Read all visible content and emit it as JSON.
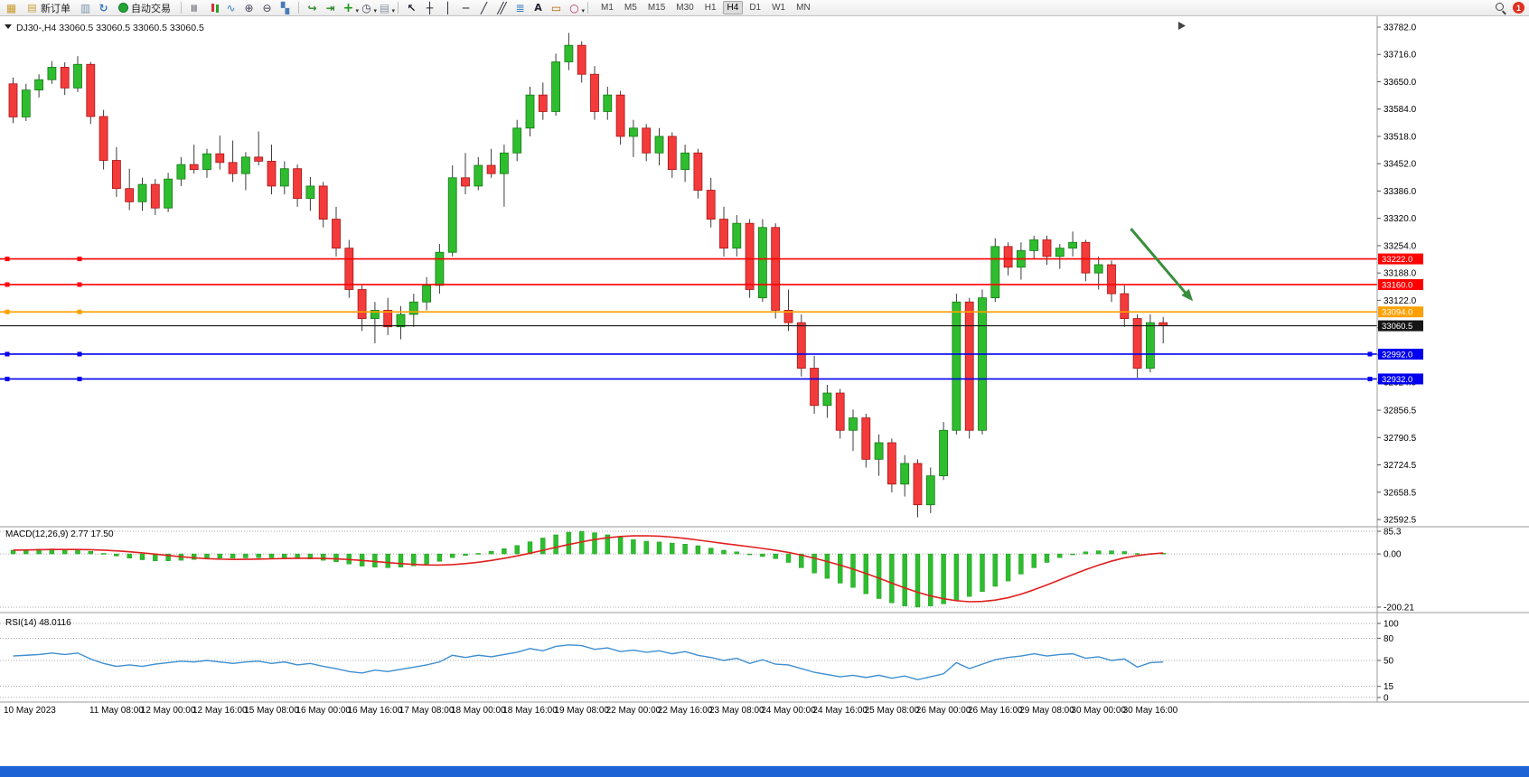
{
  "window": {
    "bottom_bar_color": "#1e63d6"
  },
  "toolbar": {
    "new_order_label": "新订单",
    "autotrading_label": "自动交易",
    "timeframes": [
      "M1",
      "M5",
      "M15",
      "M30",
      "H1",
      "H4",
      "D1",
      "W1",
      "MN"
    ],
    "active_timeframe": "H4",
    "notification_count": "1"
  },
  "chart_data": {
    "type": "candlestick",
    "symbol": "DJ30-",
    "period": "H4",
    "header": "DJ30-,H4  33060.5 33060.5 33060.5 33060.5",
    "ylim": [
      32592.5,
      33782.0
    ],
    "y_axis_labels": [
      "33782.0",
      "33716.0",
      "33650.0",
      "33584.0",
      "33518.0",
      "33452.0",
      "33386.0",
      "33320.0",
      "33254.0",
      "33188.0",
      "33122.0",
      "33056.0",
      "32990.0",
      "32924.0",
      "32856.5",
      "32790.5",
      "32724.5",
      "32658.5",
      "32592.5"
    ],
    "time_labels": [
      [
        "10 May 2023",
        0
      ],
      [
        "11 May 08:00",
        8
      ],
      [
        "12 May 00:00",
        12
      ],
      [
        "12 May 16:00",
        16
      ],
      [
        "15 May 08:00",
        20
      ],
      [
        "16 May 00:00",
        24
      ],
      [
        "16 May 16:00",
        28
      ],
      [
        "17 May 08:00",
        32
      ],
      [
        "18 May 00:00",
        36
      ],
      [
        "18 May 16:00",
        40
      ],
      [
        "19 May 08:00",
        44
      ],
      [
        "22 May 00:00",
        48
      ],
      [
        "22 May 16:00",
        52
      ],
      [
        "23 May 08:00",
        56
      ],
      [
        "24 May 00:00",
        60
      ],
      [
        "24 May 16:00",
        64
      ],
      [
        "25 May 08:00",
        68
      ],
      [
        "26 May 00:00",
        72
      ],
      [
        "26 May 16:00",
        76
      ],
      [
        "29 May 08:00",
        80
      ],
      [
        "30 May 00:00",
        84
      ],
      [
        "30 May 16:00",
        88
      ]
    ],
    "candles": [
      [
        33645,
        33660,
        33550,
        33565
      ],
      [
        33565,
        33645,
        33555,
        33630
      ],
      [
        33630,
        33668,
        33612,
        33655
      ],
      [
        33655,
        33700,
        33645,
        33685
      ],
      [
        33685,
        33697,
        33618,
        33635
      ],
      [
        33635,
        33712,
        33625,
        33692
      ],
      [
        33692,
        33698,
        33548,
        33566
      ],
      [
        33566,
        33582,
        33438,
        33460
      ],
      [
        33460,
        33492,
        33372,
        33392
      ],
      [
        33392,
        33440,
        33340,
        33360
      ],
      [
        33360,
        33418,
        33338,
        33402
      ],
      [
        33402,
        33415,
        33328,
        33345
      ],
      [
        33345,
        33430,
        33335,
        33415
      ],
      [
        33415,
        33468,
        33398,
        33450
      ],
      [
        33450,
        33498,
        33428,
        33438
      ],
      [
        33438,
        33488,
        33418,
        33476
      ],
      [
        33476,
        33520,
        33438,
        33455
      ],
      [
        33455,
        33508,
        33408,
        33428
      ],
      [
        33428,
        33480,
        33388,
        33468
      ],
      [
        33468,
        33530,
        33448,
        33458
      ],
      [
        33458,
        33498,
        33378,
        33398
      ],
      [
        33398,
        33458,
        33378,
        33440
      ],
      [
        33440,
        33450,
        33348,
        33368
      ],
      [
        33368,
        33420,
        33338,
        33398
      ],
      [
        33398,
        33408,
        33298,
        33318
      ],
      [
        33318,
        33348,
        33228,
        33248
      ],
      [
        33248,
        33268,
        33128,
        33148
      ],
      [
        33148,
        33158,
        33048,
        33078
      ],
      [
        33078,
        33118,
        33018,
        33098
      ],
      [
        33098,
        33128,
        33038,
        33058
      ],
      [
        33058,
        33108,
        33028,
        33088
      ],
      [
        33088,
        33138,
        33058,
        33118
      ],
      [
        33118,
        33178,
        33098,
        33158
      ],
      [
        33158,
        33258,
        33138,
        33238
      ],
      [
        33238,
        33448,
        33228,
        33418
      ],
      [
        33418,
        33478,
        33378,
        33398
      ],
      [
        33398,
        33468,
        33388,
        33448
      ],
      [
        33448,
        33488,
        33418,
        33428
      ],
      [
        33428,
        33498,
        33348,
        33478
      ],
      [
        33478,
        33558,
        33458,
        33538
      ],
      [
        33538,
        33638,
        33518,
        33618
      ],
      [
        33618,
        33648,
        33558,
        33578
      ],
      [
        33578,
        33718,
        33568,
        33698
      ],
      [
        33698,
        33768,
        33678,
        33738
      ],
      [
        33738,
        33748,
        33648,
        33668
      ],
      [
        33668,
        33688,
        33558,
        33578
      ],
      [
        33578,
        33638,
        33558,
        33618
      ],
      [
        33618,
        33628,
        33498,
        33518
      ],
      [
        33518,
        33558,
        33468,
        33538
      ],
      [
        33538,
        33548,
        33458,
        33478
      ],
      [
        33478,
        33538,
        33448,
        33518
      ],
      [
        33518,
        33528,
        33418,
        33438
      ],
      [
        33438,
        33498,
        33408,
        33478
      ],
      [
        33478,
        33488,
        33368,
        33388
      ],
      [
        33388,
        33418,
        33298,
        33318
      ],
      [
        33318,
        33348,
        33228,
        33248
      ],
      [
        33248,
        33328,
        33228,
        33308
      ],
      [
        33308,
        33318,
        33128,
        33148
      ],
      [
        33128,
        33318,
        33118,
        33298
      ],
      [
        33298,
        33308,
        33078,
        33098
      ],
      [
        33098,
        33148,
        33048,
        33068
      ],
      [
        33068,
        33088,
        32938,
        32958
      ],
      [
        32958,
        32988,
        32848,
        32868
      ],
      [
        32868,
        32918,
        32838,
        32898
      ],
      [
        32898,
        32908,
        32788,
        32808
      ],
      [
        32808,
        32858,
        32758,
        32838
      ],
      [
        32838,
        32848,
        32718,
        32738
      ],
      [
        32738,
        32798,
        32698,
        32778
      ],
      [
        32778,
        32788,
        32658,
        32678
      ],
      [
        32678,
        32748,
        32648,
        32728
      ],
      [
        32728,
        32738,
        32598,
        32628
      ],
      [
        32628,
        32718,
        32608,
        32698
      ],
      [
        32698,
        32828,
        32688,
        32808
      ],
      [
        32808,
        33138,
        32798,
        33118
      ],
      [
        33118,
        33128,
        32788,
        32808
      ],
      [
        32808,
        33148,
        32798,
        33128
      ],
      [
        33128,
        33272,
        33118,
        33252
      ],
      [
        33252,
        33262,
        33182,
        33202
      ],
      [
        33202,
        33262,
        33172,
        33242
      ],
      [
        33242,
        33278,
        33222,
        33268
      ],
      [
        33268,
        33278,
        33208,
        33228
      ],
      [
        33228,
        33258,
        33198,
        33248
      ],
      [
        33248,
        33288,
        33228,
        33262
      ],
      [
        33262,
        33268,
        33168,
        33188
      ],
      [
        33188,
        33228,
        33148,
        33208
      ],
      [
        33208,
        33218,
        33118,
        33138
      ],
      [
        33138,
        33158,
        33058,
        33078
      ],
      [
        33078,
        33088,
        32935,
        32958
      ],
      [
        32958,
        33088,
        32948,
        33068
      ],
      [
        33068,
        33082,
        33018,
        33060.5
      ]
    ],
    "hlines": [
      {
        "label": "33222.0",
        "price": 33222.0,
        "color": "#ff0000",
        "width": 1.6,
        "handles": [
          8,
          88
        ]
      },
      {
        "label": "33160.0",
        "price": 33160.0,
        "color": "#ff0000",
        "width": 1.6,
        "handles": [
          8,
          88
        ]
      },
      {
        "label": "33094.0",
        "price": 33094.0,
        "color": "#ffa000",
        "width": 1.6,
        "handles": [
          8,
          88
        ]
      },
      {
        "label": "33060.5",
        "price": 33060.5,
        "color": "#151515",
        "width": 1.1,
        "handles": []
      },
      {
        "label": "32992.0",
        "price": 32992.0,
        "color": "#0000ee",
        "width": 1.6,
        "handles": [
          8,
          88,
          1516
        ]
      },
      {
        "label": "32932.0",
        "price": 32932.0,
        "color": "#0000ee",
        "width": 1.6,
        "handles": [
          8,
          88,
          1516
        ]
      }
    ],
    "current_price_tag": "33060.5",
    "arrow": {
      "color": "#388e3c",
      "from": {
        "candle": 86.5,
        "price": 33295
      },
      "to": {
        "candle": 91.3,
        "price": 33120
      }
    },
    "indicators": {
      "macd": {
        "label": "MACD(12,26,9) 2.77 17.50",
        "value": 2.77,
        "signal_value": 17.5,
        "scale": {
          "labels": [
            "85.3",
            "0.00",
            "-200.21"
          ],
          "values": [
            85.3,
            0,
            -200.21
          ]
        },
        "histogram": [
          14,
          16,
          18,
          19,
          17,
          16,
          10,
          2,
          -8,
          -16,
          -22,
          -26,
          -26,
          -24,
          -21,
          -18,
          -16,
          -16,
          -15,
          -14,
          -15,
          -16,
          -18,
          -19,
          -24,
          -30,
          -38,
          -46,
          -50,
          -52,
          -50,
          -45,
          -38,
          -28,
          -14,
          -6,
          2,
          10,
          20,
          32,
          46,
          60,
          72,
          82,
          85,
          80,
          72,
          62,
          54,
          48,
          45,
          41,
          37,
          31,
          22,
          14,
          8,
          -2,
          -10,
          -18,
          -32,
          -52,
          -72,
          -92,
          -110,
          -126,
          -150,
          -168,
          -184,
          -196,
          -200,
          -196,
          -188,
          -176,
          -160,
          -142,
          -122,
          -102,
          -76,
          -52,
          -32,
          -14,
          0,
          8,
          12,
          12,
          9,
          2,
          1,
          2.77
        ]
      },
      "rsi": {
        "label": "RSI(14) 48.0116",
        "value": 48.0116,
        "levels": {
          "labels": [
            "100",
            "80",
            "50",
            "15",
            "0"
          ],
          "values": [
            100,
            80,
            50,
            15,
            0
          ]
        },
        "values": [
          56,
          57,
          58,
          60,
          58,
          60,
          52,
          46,
          42,
          44,
          42,
          45,
          47,
          49,
          48,
          50,
          48,
          46,
          48,
          49,
          46,
          48,
          44,
          46,
          42,
          39,
          35,
          33,
          37,
          35,
          38,
          41,
          44,
          48,
          57,
          54,
          57,
          55,
          58,
          61,
          66,
          63,
          69,
          71,
          70,
          65,
          67,
          62,
          64,
          61,
          63,
          59,
          62,
          57,
          54,
          50,
          53,
          46,
          51,
          45,
          44,
          39,
          34,
          31,
          28,
          30,
          27,
          30,
          26,
          29,
          24,
          28,
          32,
          47,
          39,
          45,
          51,
          54,
          56,
          59,
          56,
          58,
          59,
          53,
          55,
          50,
          52,
          41,
          47,
          48
        ]
      }
    },
    "colors": {
      "up": "#2ebd2e",
      "up_border": "#157a15",
      "down": "#f33b3b",
      "down_border": "#a81414",
      "wick": "#3c3c3c",
      "macd_hist": "#2ebd2e",
      "macd_hist_border": "#169416",
      "macd_signal": "#e01f1f",
      "rsi_line": "#3e8ed0",
      "grid": "#909090",
      "separator": "#9a9a9a",
      "tag_text": "#ffffff",
      "axis_text": "#000000"
    }
  }
}
